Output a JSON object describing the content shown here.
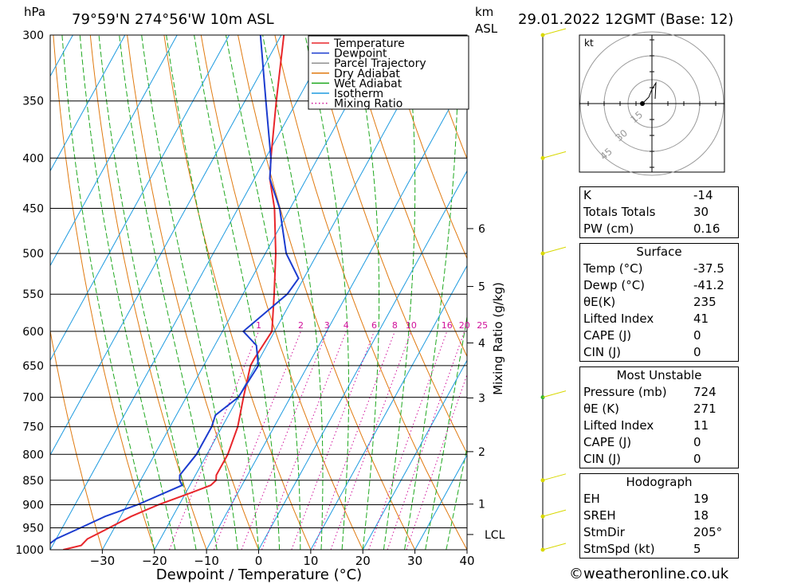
{
  "header": {
    "location": "79°59'N 274°56'W 10m ASL",
    "datetime": "29.01.2022 12GMT (Base: 12)",
    "hpa_label": "hPa",
    "km_label": "km",
    "asl_label": "ASL"
  },
  "legend": [
    {
      "label": "Temperature",
      "color": "#e8262b",
      "style": "solid"
    },
    {
      "label": "Dewpoint",
      "color": "#1c3ccf",
      "style": "solid"
    },
    {
      "label": "Parcel Trajectory",
      "color": "#909090",
      "style": "solid"
    },
    {
      "label": "Dry Adiabat",
      "color": "#e07a10",
      "style": "solid"
    },
    {
      "label": "Wet Adiabat",
      "color": "#1fa81f",
      "style": "solid"
    },
    {
      "label": "Isotherm",
      "color": "#1e9be0",
      "style": "solid"
    },
    {
      "label": "Mixing Ratio",
      "color": "#d0109a",
      "style": "dotted"
    }
  ],
  "chart_data": {
    "type": "line",
    "title": "79°59'N 274°56'W 10m ASL",
    "xlabel": "Dewpoint / Temperature (°C)",
    "ylabel": "hPa",
    "y2label": "Mixing Ratio (g/kg)",
    "xlim": [
      -40,
      40
    ],
    "ylim": [
      1000,
      300
    ],
    "x_ticks": [
      "-30",
      "-20",
      "-10",
      "0",
      "10",
      "20",
      "30",
      "40"
    ],
    "pressure_levels": [
      "300",
      "350",
      "400",
      "450",
      "500",
      "550",
      "600",
      "650",
      "700",
      "750",
      "800",
      "850",
      "900",
      "950",
      "1000"
    ],
    "km_ticks": [
      "1",
      "2",
      "3",
      "4",
      "5",
      "6"
    ],
    "lcl_label": "LCL",
    "mixing_ratio_labels": [
      "1",
      "2",
      "3",
      "4",
      "6",
      "8",
      "10",
      "16",
      "20",
      "25"
    ],
    "series": [
      {
        "name": "Temperature",
        "points": [
          [
            1000,
            -37.5
          ],
          [
            990,
            -34.5
          ],
          [
            975,
            -34
          ],
          [
            950,
            -31
          ],
          [
            925,
            -28
          ],
          [
            900,
            -24
          ],
          [
            875,
            -19
          ],
          [
            860,
            -16
          ],
          [
            850,
            -15.5
          ],
          [
            840,
            -16
          ],
          [
            800,
            -16
          ],
          [
            750,
            -17
          ],
          [
            700,
            -19
          ],
          [
            650,
            -21
          ],
          [
            640,
            -21
          ],
          [
            600,
            -20.5
          ],
          [
            550,
            -24
          ],
          [
            500,
            -28
          ],
          [
            450,
            -33
          ],
          [
            420,
            -37
          ],
          [
            400,
            -39
          ],
          [
            350,
            -44
          ],
          [
            300,
            -49.5
          ]
        ]
      },
      {
        "name": "Dewpoint",
        "points": [
          [
            1000,
            -41.2
          ],
          [
            990,
            -41
          ],
          [
            975,
            -40
          ],
          [
            950,
            -36.5
          ],
          [
            925,
            -33
          ],
          [
            900,
            -28
          ],
          [
            875,
            -24
          ],
          [
            860,
            -21.5
          ],
          [
            850,
            -22.5
          ],
          [
            840,
            -23
          ],
          [
            800,
            -22
          ],
          [
            750,
            -22
          ],
          [
            730,
            -22.5
          ],
          [
            700,
            -20
          ],
          [
            650,
            -19.5
          ],
          [
            620,
            -22
          ],
          [
            600,
            -26
          ],
          [
            550,
            -21.5
          ],
          [
            530,
            -21
          ],
          [
            500,
            -26
          ],
          [
            450,
            -32
          ],
          [
            420,
            -37
          ],
          [
            400,
            -39
          ],
          [
            350,
            -46
          ],
          [
            300,
            -54
          ]
        ]
      }
    ]
  },
  "hodograph": {
    "unit_label": "kt",
    "ring_labels": [
      "15",
      "30",
      "45"
    ]
  },
  "indices": {
    "k": {
      "label": "K",
      "value": "-14"
    },
    "totals": {
      "label": "Totals Totals",
      "value": "30"
    },
    "pw": {
      "label": "PW (cm)",
      "value": "0.16"
    }
  },
  "surface": {
    "title": "Surface",
    "temp": {
      "label": "Temp (°C)",
      "value": "-37.5"
    },
    "dewp": {
      "label": "Dewp (°C)",
      "value": "-41.2"
    },
    "theta_e": {
      "label": "θE(K)",
      "value": "235"
    },
    "lifted": {
      "label": "Lifted Index",
      "value": "41"
    },
    "cape": {
      "label": "CAPE (J)",
      "value": "0"
    },
    "cin": {
      "label": "CIN (J)",
      "value": "0"
    }
  },
  "most_unstable": {
    "title": "Most Unstable",
    "pressure": {
      "label": "Pressure (mb)",
      "value": "724"
    },
    "theta_e": {
      "label": "θE (K)",
      "value": "271"
    },
    "lifted": {
      "label": "Lifted Index",
      "value": "11"
    },
    "cape": {
      "label": "CAPE (J)",
      "value": "0"
    },
    "cin": {
      "label": "CIN (J)",
      "value": "0"
    }
  },
  "hodo_stats": {
    "title": "Hodograph",
    "eh": {
      "label": "EH",
      "value": "19"
    },
    "sreh": {
      "label": "SREH",
      "value": "18"
    },
    "stmdir": {
      "label": "StmDir",
      "value": "205°"
    },
    "stmspd": {
      "label": "StmSpd (kt)",
      "value": "5"
    }
  },
  "credit": "©weatheronline.co.uk",
  "colors": {
    "temperature": "#e8262b",
    "dewpoint": "#1c3ccf",
    "dry": "#e07a10",
    "wet": "#1fa81f",
    "iso": "#1e9be0",
    "mix": "#d0109a"
  }
}
